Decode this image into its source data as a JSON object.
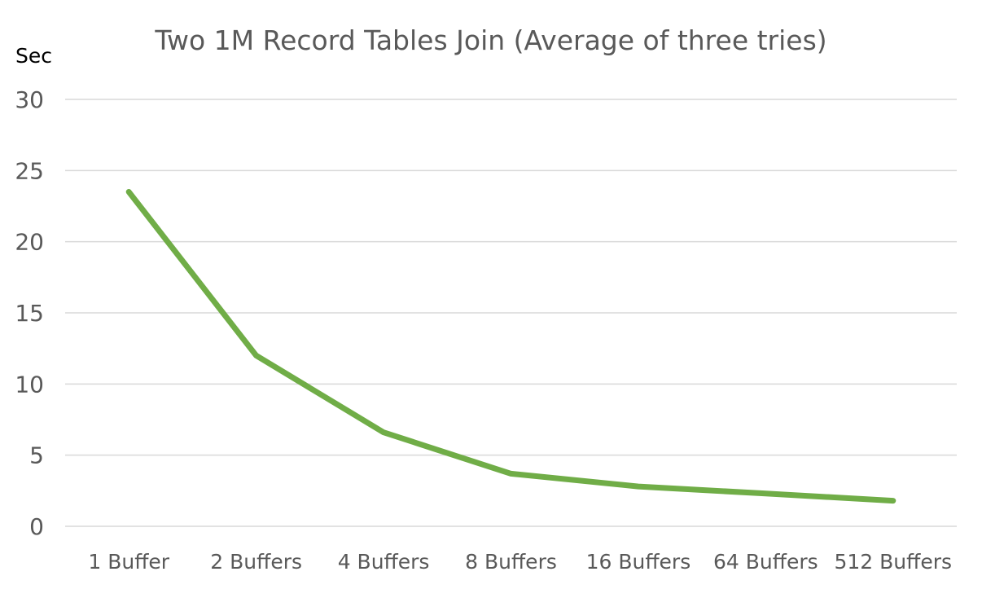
{
  "chart_data": {
    "type": "line",
    "title": "Two 1M Record Tables Join (Average of three tries)",
    "ylabel": "Sec",
    "xlabel": "",
    "categories": [
      "1 Buffer",
      "2 Buffers",
      "4 Buffers",
      "8 Buffers",
      "16 Buffers",
      "64 Buffers",
      "512 Buffers"
    ],
    "series": [
      {
        "values": [
          23.5,
          12.0,
          6.6,
          3.7,
          2.8,
          2.3,
          1.8
        ],
        "color": "#70AD47"
      }
    ],
    "ylim": [
      0,
      30
    ],
    "yticks": [
      0,
      5,
      10,
      15,
      20,
      25,
      30
    ],
    "grid": true,
    "legend": "none"
  },
  "colors": {
    "gridline": "#d9d9d9",
    "axis_text": "#595959",
    "title_text": "#595959",
    "ylabel_text": "#000000"
  }
}
